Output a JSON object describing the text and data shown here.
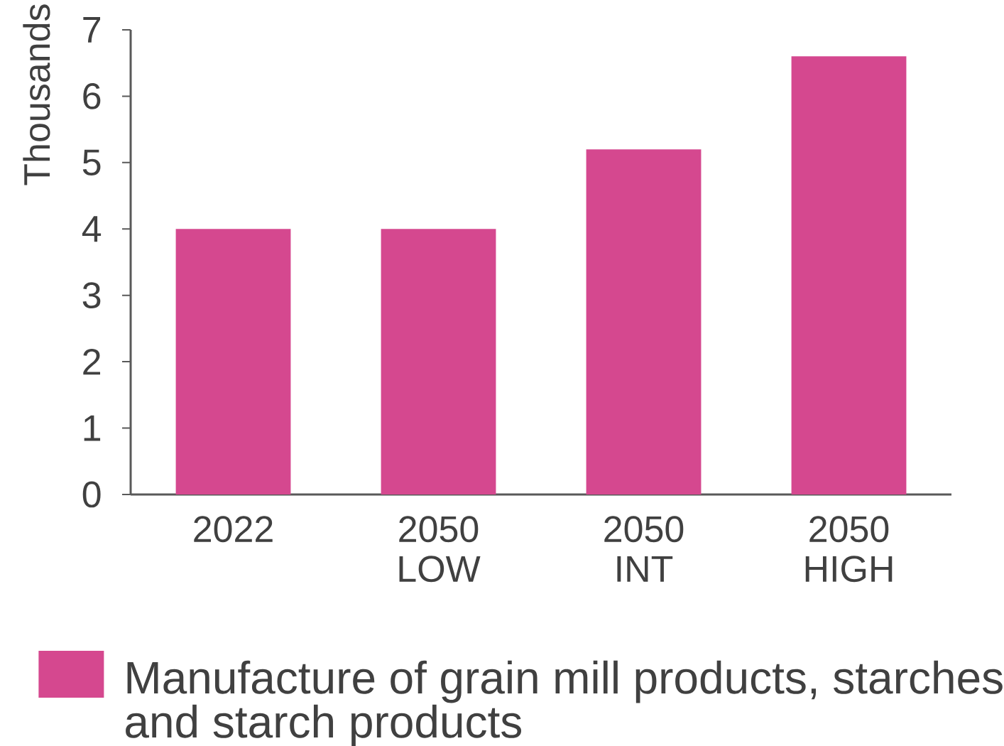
{
  "chart_data": {
    "type": "bar",
    "categories": [
      "2022",
      "2050 LOW",
      "2050 INT",
      "2050 HIGH"
    ],
    "series": [
      {
        "name": "Manufacture of grain mill products, starches and starch products",
        "color": "#d5488f",
        "values": [
          4.0,
          4.0,
          5.2,
          6.6
        ]
      }
    ],
    "ylabel": "Thousands",
    "ylim": [
      0,
      7
    ],
    "yticks": [
      0,
      1,
      2,
      3,
      4,
      5,
      6,
      7
    ],
    "legend": "bottom"
  }
}
